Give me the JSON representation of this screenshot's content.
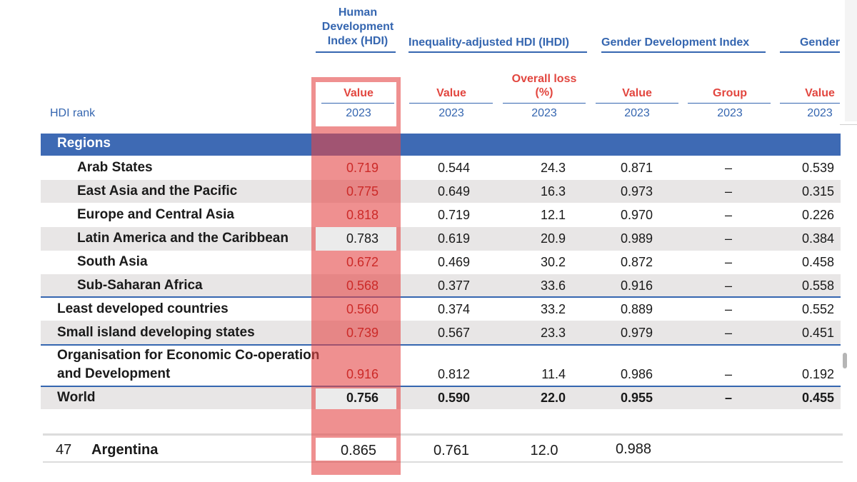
{
  "header": {
    "hdi_group": "Human Development Index (HDI)",
    "ihdi_group": "Inequality-adjusted HDI (IHDI)",
    "gdi_group": "Gender Development Index",
    "gii_group": "Gender",
    "hdi_rank_label": "HDI rank",
    "sub_value": "Value",
    "sub_overall_loss": "Overall loss (%)",
    "sub_group": "Group",
    "year": "2023"
  },
  "regions_label": "Regions",
  "rows": [
    {
      "label": "Arab States",
      "hdi": "0.719",
      "ihdi": "0.544",
      "loss": "24.3",
      "gdi": "0.871",
      "group": "–",
      "gii": "0.539"
    },
    {
      "label": "East Asia and the Pacific",
      "hdi": "0.775",
      "ihdi": "0.649",
      "loss": "16.3",
      "gdi": "0.973",
      "group": "–",
      "gii": "0.315"
    },
    {
      "label": "Europe and Central Asia",
      "hdi": "0.818",
      "ihdi": "0.719",
      "loss": "12.1",
      "gdi": "0.970",
      "group": "–",
      "gii": "0.226"
    },
    {
      "label": "Latin America and the Caribbean",
      "hdi": "0.783",
      "ihdi": "0.619",
      "loss": "20.9",
      "gdi": "0.989",
      "group": "–",
      "gii": "0.384"
    },
    {
      "label": "South Asia",
      "hdi": "0.672",
      "ihdi": "0.469",
      "loss": "30.2",
      "gdi": "0.872",
      "group": "–",
      "gii": "0.458"
    },
    {
      "label": "Sub-Saharan Africa",
      "hdi": "0.568",
      "ihdi": "0.377",
      "loss": "33.6",
      "gdi": "0.916",
      "group": "–",
      "gii": "0.558"
    },
    {
      "label": "Least developed countries",
      "hdi": "0.560",
      "ihdi": "0.374",
      "loss": "33.2",
      "gdi": "0.889",
      "group": "–",
      "gii": "0.552"
    },
    {
      "label": "Small island developing states",
      "hdi": "0.739",
      "ihdi": "0.567",
      "loss": "23.3",
      "gdi": "0.979",
      "group": "–",
      "gii": "0.451"
    },
    {
      "label1": "Organisation for Economic Co-operation",
      "label2": "and Development",
      "hdi": "0.916",
      "ihdi": "0.812",
      "loss": "11.4",
      "gdi": "0.986",
      "group": "–",
      "gii": "0.192"
    },
    {
      "label": "World",
      "hdi": "0.756",
      "ihdi": "0.590",
      "loss": "22.0",
      "gdi": "0.955",
      "group": "–",
      "gii": "0.455"
    }
  ],
  "argentina": {
    "rank": "47",
    "name": "Argentina",
    "hdi": "0.865",
    "ihdi": "0.761",
    "loss": "12.0",
    "gdi": "0.988"
  }
}
